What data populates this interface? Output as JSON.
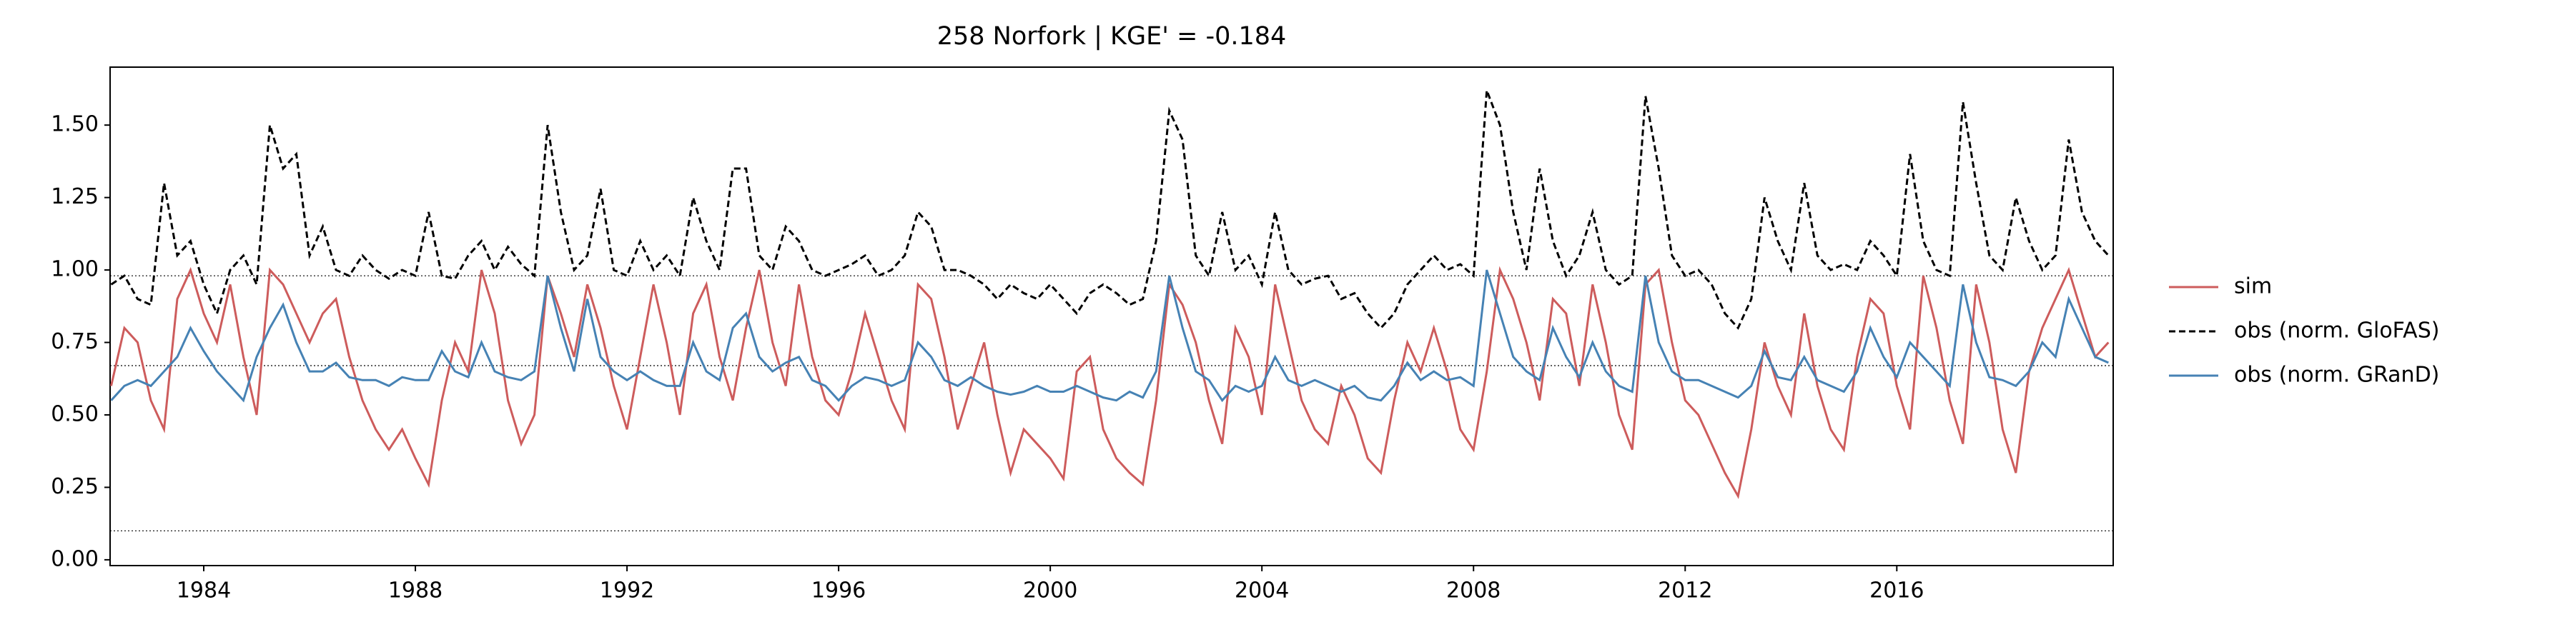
{
  "chart_data": {
    "type": "line",
    "title": "258  Norfork | KGE' = -0.184",
    "x": [
      1982.25,
      1982.5,
      1982.75,
      1983,
      1983.25,
      1983.5,
      1983.75,
      1984,
      1984.25,
      1984.5,
      1984.75,
      1985,
      1985.25,
      1985.5,
      1985.75,
      1986,
      1986.25,
      1986.5,
      1986.75,
      1987,
      1987.25,
      1987.5,
      1987.75,
      1988,
      1988.25,
      1988.5,
      1988.75,
      1989,
      1989.25,
      1989.5,
      1989.75,
      1990,
      1990.25,
      1990.5,
      1990.75,
      1991,
      1991.25,
      1991.5,
      1991.75,
      1992,
      1992.25,
      1992.5,
      1992.75,
      1993,
      1993.25,
      1993.5,
      1993.75,
      1994,
      1994.25,
      1994.5,
      1994.75,
      1995,
      1995.25,
      1995.5,
      1995.75,
      1996,
      1996.25,
      1996.5,
      1996.75,
      1997,
      1997.25,
      1997.5,
      1997.75,
      1998,
      1998.25,
      1998.5,
      1998.75,
      1999,
      1999.25,
      1999.5,
      1999.75,
      2000,
      2000.25,
      2000.5,
      2000.75,
      2001,
      2001.25,
      2001.5,
      2001.75,
      2002,
      2002.25,
      2002.5,
      2002.75,
      2003,
      2003.25,
      2003.5,
      2003.75,
      2004,
      2004.25,
      2004.5,
      2004.75,
      2005,
      2005.25,
      2005.5,
      2005.75,
      2006,
      2006.25,
      2006.5,
      2006.75,
      2007,
      2007.25,
      2007.5,
      2007.75,
      2008,
      2008.25,
      2008.5,
      2008.75,
      2009,
      2009.25,
      2009.5,
      2009.75,
      2010,
      2010.25,
      2010.5,
      2010.75,
      2011,
      2011.25,
      2011.5,
      2011.75,
      2012,
      2012.25,
      2012.5,
      2012.75,
      2013,
      2013.25,
      2013.5,
      2013.75,
      2014,
      2014.25,
      2014.5,
      2014.75,
      2015,
      2015.25,
      2015.5,
      2015.75,
      2016,
      2016.25,
      2016.5,
      2016.75,
      2017,
      2017.25,
      2017.5,
      2017.75,
      2018,
      2018.25,
      2018.5,
      2018.75,
      2019,
      2019.25,
      2019.5,
      2019.75,
      2020
    ],
    "series": [
      {
        "name": "sim",
        "color": "#cd5c5c",
        "linestyle": "solid",
        "values": [
          0.6,
          0.8,
          0.75,
          0.55,
          0.45,
          0.9,
          1.0,
          0.85,
          0.75,
          0.95,
          0.7,
          0.5,
          1.0,
          0.95,
          0.85,
          0.75,
          0.85,
          0.9,
          0.7,
          0.55,
          0.45,
          0.38,
          0.45,
          0.35,
          0.26,
          0.55,
          0.75,
          0.65,
          1.0,
          0.85,
          0.55,
          0.4,
          0.5,
          0.98,
          0.85,
          0.7,
          0.95,
          0.8,
          0.6,
          0.45,
          0.7,
          0.95,
          0.75,
          0.5,
          0.85,
          0.95,
          0.7,
          0.55,
          0.8,
          1.0,
          0.75,
          0.6,
          0.95,
          0.7,
          0.55,
          0.5,
          0.65,
          0.85,
          0.7,
          0.55,
          0.45,
          0.95,
          0.9,
          0.7,
          0.45,
          0.6,
          0.75,
          0.5,
          0.3,
          0.45,
          0.4,
          0.35,
          0.28,
          0.65,
          0.7,
          0.45,
          0.35,
          0.3,
          0.26,
          0.55,
          0.95,
          0.88,
          0.75,
          0.55,
          0.4,
          0.8,
          0.7,
          0.5,
          0.95,
          0.75,
          0.55,
          0.45,
          0.4,
          0.6,
          0.5,
          0.35,
          0.3,
          0.55,
          0.75,
          0.65,
          0.8,
          0.65,
          0.45,
          0.38,
          0.65,
          1.0,
          0.9,
          0.75,
          0.55,
          0.9,
          0.85,
          0.6,
          0.95,
          0.75,
          0.5,
          0.38,
          0.95,
          1.0,
          0.75,
          0.55,
          0.5,
          0.4,
          0.3,
          0.22,
          0.45,
          0.75,
          0.6,
          0.5,
          0.85,
          0.6,
          0.45,
          0.38,
          0.7,
          0.9,
          0.85,
          0.6,
          0.45,
          0.98,
          0.8,
          0.55,
          0.4,
          0.95,
          0.75,
          0.45,
          0.3,
          0.65,
          0.8,
          0.9,
          1.0,
          0.85,
          0.7,
          0.75
        ]
      },
      {
        "name": "obs (norm. GloFAS)",
        "color": "#000000",
        "linestyle": "dashed",
        "values": [
          0.95,
          0.98,
          0.9,
          0.88,
          1.3,
          1.05,
          1.1,
          0.95,
          0.85,
          1.0,
          1.05,
          0.95,
          1.5,
          1.35,
          1.4,
          1.05,
          1.15,
          1.0,
          0.98,
          1.05,
          1.0,
          0.97,
          1.0,
          0.98,
          1.2,
          0.98,
          0.97,
          1.05,
          1.1,
          1.0,
          1.08,
          1.02,
          0.98,
          1.5,
          1.2,
          1.0,
          1.05,
          1.28,
          1.0,
          0.98,
          1.1,
          1.0,
          1.05,
          0.98,
          1.25,
          1.1,
          1.0,
          1.35,
          1.35,
          1.05,
          1.0,
          1.15,
          1.1,
          1.0,
          0.98,
          1.0,
          1.02,
          1.05,
          0.98,
          1.0,
          1.05,
          1.2,
          1.15,
          1.0,
          1.0,
          0.98,
          0.95,
          0.9,
          0.95,
          0.92,
          0.9,
          0.95,
          0.9,
          0.85,
          0.92,
          0.95,
          0.92,
          0.88,
          0.9,
          1.1,
          1.55,
          1.45,
          1.05,
          0.98,
          1.2,
          1.0,
          1.05,
          0.95,
          1.2,
          1.0,
          0.95,
          0.97,
          0.98,
          0.9,
          0.92,
          0.85,
          0.8,
          0.85,
          0.95,
          1.0,
          1.05,
          1.0,
          1.02,
          0.98,
          1.62,
          1.5,
          1.2,
          1.0,
          1.35,
          1.1,
          0.98,
          1.05,
          1.2,
          1.0,
          0.95,
          0.98,
          1.6,
          1.35,
          1.05,
          0.98,
          1.0,
          0.95,
          0.85,
          0.8,
          0.9,
          1.25,
          1.1,
          1.0,
          1.3,
          1.05,
          1.0,
          1.02,
          1.0,
          1.1,
          1.05,
          0.98,
          1.4,
          1.1,
          1.0,
          0.98,
          1.58,
          1.3,
          1.05,
          1.0,
          1.25,
          1.1,
          1.0,
          1.05,
          1.45,
          1.2,
          1.1,
          1.05
        ]
      },
      {
        "name": "obs (norm. GRanD)",
        "color": "#4682b4",
        "linestyle": "solid",
        "values": [
          0.55,
          0.6,
          0.62,
          0.6,
          0.65,
          0.7,
          0.8,
          0.72,
          0.65,
          0.6,
          0.55,
          0.7,
          0.8,
          0.88,
          0.75,
          0.65,
          0.65,
          0.68,
          0.63,
          0.62,
          0.62,
          0.6,
          0.63,
          0.62,
          0.62,
          0.72,
          0.65,
          0.63,
          0.75,
          0.65,
          0.63,
          0.62,
          0.65,
          0.98,
          0.8,
          0.65,
          0.9,
          0.7,
          0.65,
          0.62,
          0.65,
          0.62,
          0.6,
          0.6,
          0.75,
          0.65,
          0.62,
          0.8,
          0.85,
          0.7,
          0.65,
          0.68,
          0.7,
          0.62,
          0.6,
          0.55,
          0.6,
          0.63,
          0.62,
          0.6,
          0.62,
          0.75,
          0.7,
          0.62,
          0.6,
          0.63,
          0.6,
          0.58,
          0.57,
          0.58,
          0.6,
          0.58,
          0.58,
          0.6,
          0.58,
          0.56,
          0.55,
          0.58,
          0.56,
          0.65,
          0.98,
          0.8,
          0.65,
          0.62,
          0.55,
          0.6,
          0.58,
          0.6,
          0.7,
          0.62,
          0.6,
          0.62,
          0.6,
          0.58,
          0.6,
          0.56,
          0.55,
          0.6,
          0.68,
          0.62,
          0.65,
          0.62,
          0.63,
          0.6,
          1.0,
          0.85,
          0.7,
          0.65,
          0.62,
          0.8,
          0.7,
          0.63,
          0.75,
          0.65,
          0.6,
          0.58,
          0.98,
          0.75,
          0.65,
          0.62,
          0.62,
          0.6,
          0.58,
          0.56,
          0.6,
          0.72,
          0.63,
          0.62,
          0.7,
          0.62,
          0.6,
          0.58,
          0.65,
          0.8,
          0.7,
          0.63,
          0.75,
          0.7,
          0.65,
          0.6,
          0.95,
          0.75,
          0.63,
          0.62,
          0.6,
          0.65,
          0.75,
          0.7,
          0.9,
          0.8,
          0.7,
          0.68
        ]
      }
    ],
    "hlines": [
      0.1,
      0.67,
      0.98
    ],
    "xlim": [
      1982.23,
      2020.09
    ],
    "ylim": [
      -0.02,
      1.7
    ],
    "xticks": [
      1984,
      1988,
      1992,
      1996,
      2000,
      2004,
      2008,
      2012,
      2016
    ],
    "yticks": [
      {
        "value": 0,
        "label": "0.00"
      },
      {
        "value": 0.25,
        "label": "0.25"
      },
      {
        "value": 0.5,
        "label": "0.50"
      },
      {
        "value": 0.75,
        "label": "0.75"
      },
      {
        "value": 1,
        "label": "1.00"
      },
      {
        "value": 1.25,
        "label": "1.25"
      },
      {
        "value": 1.5,
        "label": "1.50"
      }
    ],
    "legend": "outside-right"
  }
}
